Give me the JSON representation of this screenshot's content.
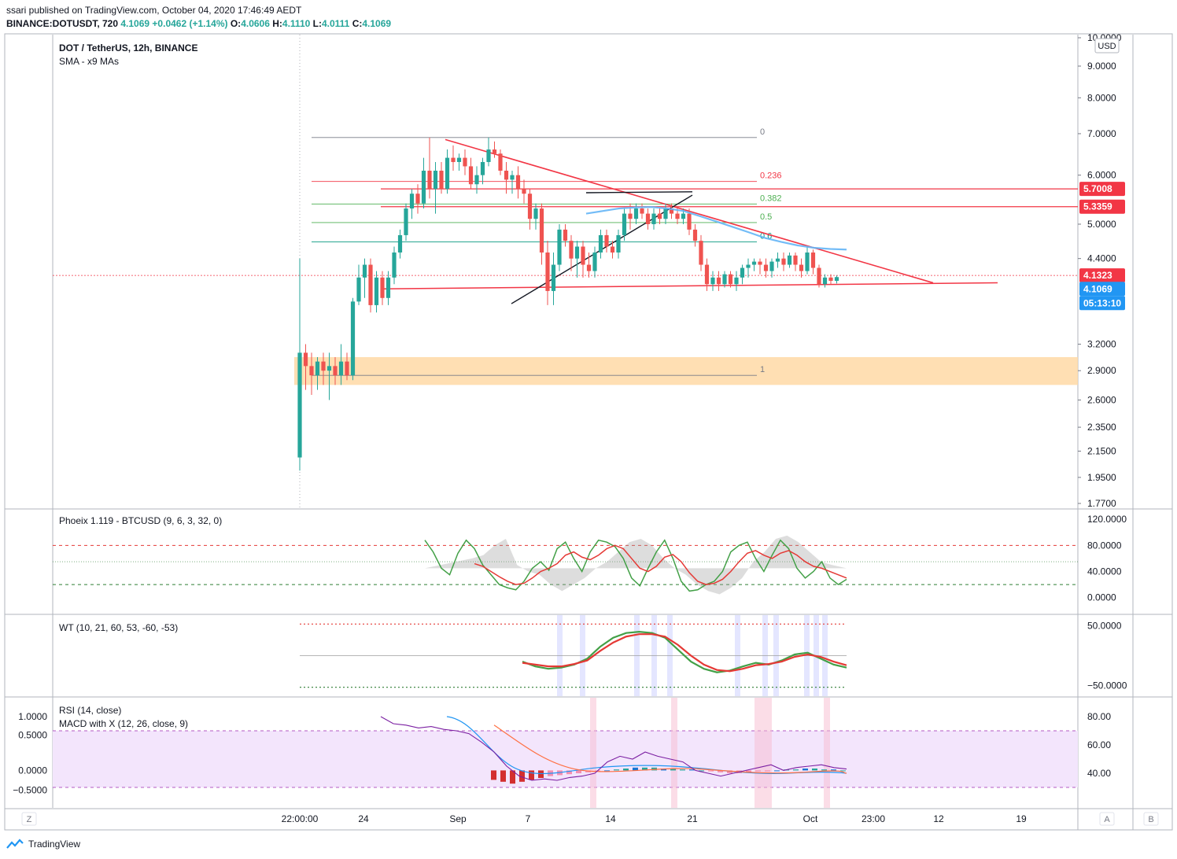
{
  "header": {
    "line1": "ssari published on TradingView.com, October 04, 2020 17:46:49 AEDT",
    "symbol": "BINANCE:DOTUSDT, 720",
    "last": "4.1069",
    "change": "+0.0462 (+1.14%)",
    "ohlc": {
      "o": "4.0606",
      "h": "4.1110",
      "l": "4.0111",
      "c": "4.1069"
    }
  },
  "footer": {
    "brand": "TradingView"
  },
  "colors": {
    "up": "#26a69a",
    "down": "#ef5350",
    "blue": "#2196f3",
    "red_line": "#f23645",
    "fib_gray": "#787b86",
    "fib_red": "#f23645",
    "fib_green": "#4caf50",
    "fib_teal": "#089981",
    "zone": "#ffd9a6",
    "rsi_band": "#f3e5fc",
    "green_wave": "#43a047",
    "red_wave": "#e53935"
  },
  "main_pane": {
    "title": "DOT / TetherUS, 12h, BINANCE",
    "subtitle": "SMA - x9 MAs",
    "currency": "USD",
    "price_ticks": [
      "10.0000",
      "9.0000",
      "8.0000",
      "7.0000",
      "6.0000",
      "5.0000",
      "4.4000",
      "3.2000",
      "2.9000",
      "2.6000",
      "2.3500",
      "2.1500",
      "1.9500",
      "1.7700"
    ],
    "price_tags": [
      {
        "label": "5.7008",
        "bg": "#f23645"
      },
      {
        "label": "5.3359",
        "bg": "#f23645"
      },
      {
        "label": "4.1323",
        "bg": "#f23645"
      },
      {
        "label": "4.1069",
        "bg": "#2196f3"
      },
      {
        "label": "05:13:10",
        "bg": "#2196f3"
      }
    ],
    "fib_levels": [
      "0",
      "0.236",
      "0.382",
      "0.5",
      "0.6",
      "1"
    ]
  },
  "phoeix_pane": {
    "title": "Phoeix 1.119 - BTCUSD (9, 6, 3, 32, 0)",
    "ticks": [
      "120.0000",
      "80.0000",
      "40.0000",
      "0.0000"
    ]
  },
  "wt_pane": {
    "title": "WT (10, 21, 60, 53, -60, -53)",
    "ticks": [
      "50.0000",
      "−50.0000"
    ]
  },
  "rsi_pane": {
    "title1": "RSI (14, close)",
    "title2": "MACD with X (12, 26, close, 9)",
    "right_ticks": [
      "80.00",
      "60.00",
      "40.00"
    ],
    "left_ticks": [
      "1.0000",
      "0.5000",
      "0.0000",
      "−0.5000"
    ]
  },
  "time_axis": {
    "labels": [
      "22:00:00",
      "24",
      "Sep",
      "7",
      "14",
      "21",
      "Oct",
      "23:00",
      "12",
      "19"
    ],
    "left_btn": "Z",
    "right_btn_a": "A",
    "right_btn_b": "B"
  },
  "chart_data": [
    {
      "type": "candlestick",
      "title": "DOT / TetherUS, 12h, BINANCE",
      "ylabel": "USD",
      "ylim": [
        1.77,
        10.0
      ],
      "y_scale": "log",
      "x_range": [
        "2020-08-18",
        "2020-10-22"
      ],
      "candles": [
        {
          "o": 2.1,
          "h": 4.4,
          "l": 2.0,
          "c": 3.1
        },
        {
          "o": 3.1,
          "h": 3.2,
          "l": 2.7,
          "c": 2.95
        },
        {
          "o": 2.95,
          "h": 3.1,
          "l": 2.65,
          "c": 2.85
        },
        {
          "o": 2.85,
          "h": 3.05,
          "l": 2.7,
          "c": 3.0
        },
        {
          "o": 3.0,
          "h": 3.1,
          "l": 2.75,
          "c": 2.9
        },
        {
          "o": 2.9,
          "h": 3.1,
          "l": 2.6,
          "c": 2.95
        },
        {
          "o": 2.95,
          "h": 3.05,
          "l": 2.75,
          "c": 2.85
        },
        {
          "o": 2.85,
          "h": 3.2,
          "l": 2.75,
          "c": 3.0
        },
        {
          "o": 3.0,
          "h": 3.1,
          "l": 2.8,
          "c": 2.85
        },
        {
          "o": 2.85,
          "h": 3.8,
          "l": 2.8,
          "c": 3.75
        },
        {
          "o": 3.75,
          "h": 4.3,
          "l": 3.7,
          "c": 4.1
        },
        {
          "o": 4.1,
          "h": 4.4,
          "l": 3.8,
          "c": 4.3
        },
        {
          "o": 4.3,
          "h": 4.4,
          "l": 3.6,
          "c": 3.7
        },
        {
          "o": 3.7,
          "h": 4.2,
          "l": 3.6,
          "c": 4.1
        },
        {
          "o": 4.1,
          "h": 4.2,
          "l": 3.7,
          "c": 3.8
        },
        {
          "o": 3.8,
          "h": 4.2,
          "l": 3.7,
          "c": 4.1
        },
        {
          "o": 4.1,
          "h": 4.6,
          "l": 4.0,
          "c": 4.5
        },
        {
          "o": 4.5,
          "h": 4.9,
          "l": 4.4,
          "c": 4.8
        },
        {
          "o": 4.8,
          "h": 5.4,
          "l": 4.7,
          "c": 5.3
        },
        {
          "o": 5.3,
          "h": 5.7,
          "l": 5.1,
          "c": 5.6
        },
        {
          "o": 5.6,
          "h": 5.8,
          "l": 5.2,
          "c": 5.4
        },
        {
          "o": 5.4,
          "h": 6.4,
          "l": 5.3,
          "c": 6.1
        },
        {
          "o": 6.1,
          "h": 6.9,
          "l": 5.5,
          "c": 5.7
        },
        {
          "o": 5.7,
          "h": 6.3,
          "l": 5.2,
          "c": 6.1
        },
        {
          "o": 6.1,
          "h": 6.3,
          "l": 5.6,
          "c": 5.7
        },
        {
          "o": 5.7,
          "h": 6.6,
          "l": 5.6,
          "c": 6.4
        },
        {
          "o": 6.4,
          "h": 6.7,
          "l": 6.1,
          "c": 6.3
        },
        {
          "o": 6.3,
          "h": 6.5,
          "l": 6.1,
          "c": 6.4
        },
        {
          "o": 6.4,
          "h": 6.6,
          "l": 6.0,
          "c": 6.2
        },
        {
          "o": 6.2,
          "h": 6.4,
          "l": 5.7,
          "c": 5.8
        },
        {
          "o": 5.8,
          "h": 6.2,
          "l": 5.6,
          "c": 6.0
        },
        {
          "o": 6.0,
          "h": 6.4,
          "l": 5.8,
          "c": 6.3
        },
        {
          "o": 6.3,
          "h": 6.9,
          "l": 6.2,
          "c": 6.6
        },
        {
          "o": 6.6,
          "h": 6.8,
          "l": 6.4,
          "c": 6.5
        },
        {
          "o": 6.5,
          "h": 6.6,
          "l": 6.0,
          "c": 6.1
        },
        {
          "o": 6.1,
          "h": 6.3,
          "l": 5.6,
          "c": 5.9
        },
        {
          "o": 5.9,
          "h": 6.1,
          "l": 5.6,
          "c": 6.0
        },
        {
          "o": 6.0,
          "h": 6.2,
          "l": 5.5,
          "c": 5.7
        },
        {
          "o": 5.7,
          "h": 5.9,
          "l": 5.4,
          "c": 5.6
        },
        {
          "o": 5.6,
          "h": 5.7,
          "l": 4.9,
          "c": 5.1
        },
        {
          "o": 5.1,
          "h": 5.4,
          "l": 4.9,
          "c": 5.3
        },
        {
          "o": 5.3,
          "h": 5.4,
          "l": 4.3,
          "c": 4.5
        },
        {
          "o": 4.5,
          "h": 4.7,
          "l": 3.7,
          "c": 3.9
        },
        {
          "o": 3.9,
          "h": 4.5,
          "l": 3.7,
          "c": 4.3
        },
        {
          "o": 4.3,
          "h": 5.0,
          "l": 4.2,
          "c": 4.9
        },
        {
          "o": 4.9,
          "h": 5.0,
          "l": 4.6,
          "c": 4.7
        },
        {
          "o": 4.7,
          "h": 4.8,
          "l": 4.2,
          "c": 4.4
        },
        {
          "o": 4.4,
          "h": 4.7,
          "l": 4.1,
          "c": 4.6
        },
        {
          "o": 4.6,
          "h": 4.7,
          "l": 4.1,
          "c": 4.3
        },
        {
          "o": 4.3,
          "h": 4.5,
          "l": 4.1,
          "c": 4.2
        },
        {
          "o": 4.2,
          "h": 4.6,
          "l": 4.1,
          "c": 4.5
        },
        {
          "o": 4.5,
          "h": 4.9,
          "l": 4.4,
          "c": 4.8
        },
        {
          "o": 4.8,
          "h": 4.9,
          "l": 4.5,
          "c": 4.6
        },
        {
          "o": 4.6,
          "h": 4.7,
          "l": 4.4,
          "c": 4.5
        },
        {
          "o": 4.5,
          "h": 4.9,
          "l": 4.4,
          "c": 4.8
        },
        {
          "o": 4.8,
          "h": 5.3,
          "l": 4.7,
          "c": 5.2
        },
        {
          "o": 5.2,
          "h": 5.4,
          "l": 4.9,
          "c": 5.1
        },
        {
          "o": 5.1,
          "h": 5.4,
          "l": 5.0,
          "c": 5.3
        },
        {
          "o": 5.3,
          "h": 5.4,
          "l": 5.1,
          "c": 5.2
        },
        {
          "o": 5.2,
          "h": 5.3,
          "l": 4.9,
          "c": 5.0
        },
        {
          "o": 5.0,
          "h": 5.3,
          "l": 4.9,
          "c": 5.2
        },
        {
          "o": 5.2,
          "h": 5.3,
          "l": 5.0,
          "c": 5.1
        },
        {
          "o": 5.1,
          "h": 5.4,
          "l": 5.0,
          "c": 5.3
        },
        {
          "o": 5.3,
          "h": 5.4,
          "l": 5.1,
          "c": 5.2
        },
        {
          "o": 5.2,
          "h": 5.3,
          "l": 5.0,
          "c": 5.1
        },
        {
          "o": 5.1,
          "h": 5.3,
          "l": 5.0,
          "c": 5.2
        },
        {
          "o": 5.2,
          "h": 5.3,
          "l": 4.8,
          "c": 4.9
        },
        {
          "o": 4.9,
          "h": 5.0,
          "l": 4.6,
          "c": 4.7
        },
        {
          "o": 4.7,
          "h": 4.8,
          "l": 4.2,
          "c": 4.3
        },
        {
          "o": 4.3,
          "h": 4.4,
          "l": 3.9,
          "c": 4.0
        },
        {
          "o": 4.0,
          "h": 4.2,
          "l": 3.9,
          "c": 4.1
        },
        {
          "o": 4.1,
          "h": 4.2,
          "l": 3.9,
          "c": 4.0
        },
        {
          "o": 4.0,
          "h": 4.2,
          "l": 3.95,
          "c": 4.15
        },
        {
          "o": 4.15,
          "h": 4.2,
          "l": 3.95,
          "c": 4.0
        },
        {
          "o": 4.0,
          "h": 4.2,
          "l": 3.9,
          "c": 4.1
        },
        {
          "o": 4.1,
          "h": 4.3,
          "l": 4.0,
          "c": 4.25
        },
        {
          "o": 4.25,
          "h": 4.4,
          "l": 4.1,
          "c": 4.3
        },
        {
          "o": 4.3,
          "h": 4.4,
          "l": 4.2,
          "c": 4.35
        },
        {
          "o": 4.35,
          "h": 4.4,
          "l": 4.15,
          "c": 4.3
        },
        {
          "o": 4.3,
          "h": 4.4,
          "l": 4.1,
          "c": 4.2
        },
        {
          "o": 4.2,
          "h": 4.4,
          "l": 4.1,
          "c": 4.35
        },
        {
          "o": 4.35,
          "h": 4.5,
          "l": 4.25,
          "c": 4.4
        },
        {
          "o": 4.4,
          "h": 4.5,
          "l": 4.2,
          "c": 4.3
        },
        {
          "o": 4.3,
          "h": 4.5,
          "l": 4.25,
          "c": 4.45
        },
        {
          "o": 4.45,
          "h": 4.5,
          "l": 4.2,
          "c": 4.3
        },
        {
          "o": 4.3,
          "h": 4.4,
          "l": 4.1,
          "c": 4.2
        },
        {
          "o": 4.2,
          "h": 4.6,
          "l": 4.15,
          "c": 4.5
        },
        {
          "o": 4.5,
          "h": 4.55,
          "l": 4.15,
          "c": 4.25
        },
        {
          "o": 4.25,
          "h": 4.3,
          "l": 3.95,
          "c": 4.0
        },
        {
          "o": 4.0,
          "h": 4.15,
          "l": 3.95,
          "c": 4.1
        },
        {
          "o": 4.1,
          "h": 4.15,
          "l": 4.0,
          "c": 4.05
        },
        {
          "o": 4.05,
          "h": 4.13,
          "l": 4.01,
          "c": 4.1069
        }
      ],
      "sma_line": [
        5.2,
        5.25,
        5.3,
        5.32,
        5.33,
        5.3,
        5.25,
        5.15,
        5.05,
        4.95,
        4.85,
        4.75,
        4.68,
        4.62,
        4.58,
        4.56,
        4.55
      ],
      "fib_values": [
        6.9,
        5.86,
        5.39,
        5.03,
        4.68,
        2.85
      ]
    },
    {
      "type": "line",
      "title": "Phoeix 1.119 - BTCUSD (9, 6, 3, 32, 0)",
      "ylim": [
        -10,
        125
      ],
      "series": [
        {
          "values": [
            88,
            70,
            45,
            35,
            68,
            88,
            75,
            50,
            35,
            20,
            15,
            12,
            25,
            45,
            55,
            42,
            75,
            85,
            60,
            40,
            70,
            88,
            85,
            78,
            60,
            30,
            18,
            45,
            70,
            88,
            60,
            25,
            10,
            12,
            20,
            25,
            40,
            70,
            80,
            85,
            60,
            40,
            65,
            88,
            75,
            45,
            30,
            40,
            55,
            30,
            20,
            28
          ]
        },
        {
          "values": [
            null,
            null,
            null,
            null,
            null,
            null,
            52,
            48,
            40,
            32,
            25,
            20,
            22,
            30,
            40,
            45,
            52,
            65,
            70,
            62,
            58,
            65,
            75,
            80,
            75,
            60,
            45,
            40,
            48,
            62,
            66,
            55,
            38,
            25,
            20,
            22,
            28,
            40,
            55,
            68,
            72,
            65,
            60,
            68,
            72,
            65,
            55,
            48,
            45,
            40,
            35,
            30
          ]
        }
      ]
    },
    {
      "type": "line",
      "title": "WT (10, 21, 60, 53, -60, -53)",
      "ylim": [
        -60,
        60
      ],
      "series": [
        {
          "values": [
            -10,
            -18,
            -22,
            -20,
            -15,
            -5,
            15,
            30,
            38,
            40,
            38,
            30,
            10,
            -10,
            -22,
            -28,
            -25,
            -18,
            -12,
            -15,
            -8,
            2,
            5,
            -5,
            -15,
            -20
          ]
        },
        {
          "values": [
            -12,
            -15,
            -18,
            -18,
            -14,
            -8,
            8,
            22,
            32,
            36,
            36,
            32,
            18,
            0,
            -15,
            -24,
            -26,
            -22,
            -16,
            -14,
            -10,
            -2,
            2,
            -2,
            -10,
            -16
          ]
        }
      ]
    },
    {
      "type": "line",
      "title": "RSI (14, close)",
      "ylim": [
        20,
        90
      ],
      "series": [
        {
          "values": [
            80,
            75,
            74,
            72,
            73,
            71,
            70,
            68,
            62,
            55,
            45,
            38,
            35,
            36,
            35,
            37,
            38,
            40,
            48,
            52,
            50,
            55,
            52,
            50,
            48,
            42,
            40,
            38,
            40,
            42,
            44,
            46,
            42,
            44,
            45,
            46,
            44,
            43
          ]
        }
      ]
    }
  ]
}
